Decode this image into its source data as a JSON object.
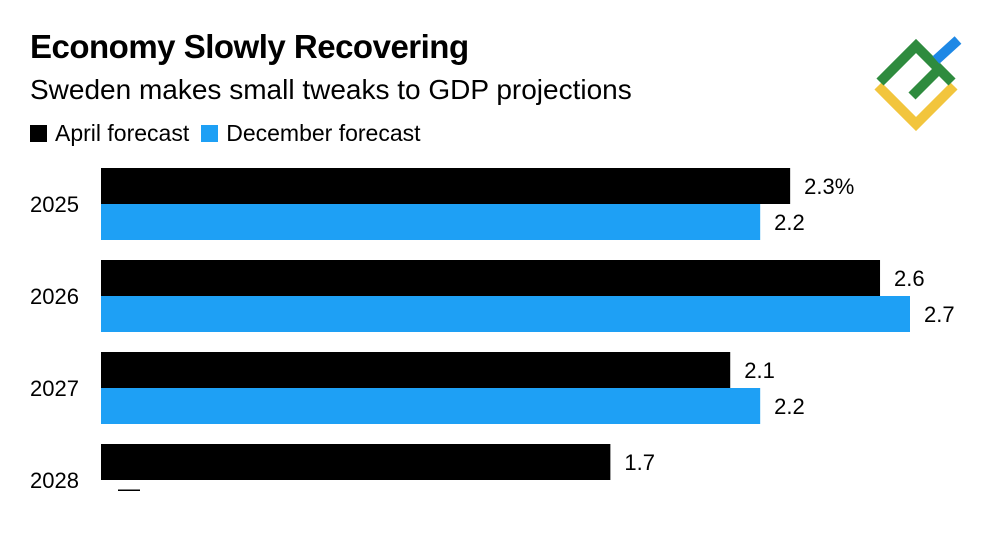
{
  "chart_data": {
    "type": "bar",
    "orientation": "horizontal",
    "title": "Economy Slowly Recovering",
    "subtitle": "Sweden makes small tweaks to GDP projections",
    "categories": [
      "2025",
      "2026",
      "2027",
      "2028"
    ],
    "series": [
      {
        "name": "April forecast",
        "color": "#000000",
        "values": [
          2.3,
          2.6,
          2.1,
          1.7
        ],
        "labels": [
          "2.3%",
          "2.6",
          "2.1",
          "1.7"
        ]
      },
      {
        "name": "December forecast",
        "color": "#1ea0f5",
        "values": [
          2.2,
          2.7,
          2.2,
          null
        ],
        "labels": [
          "2.2",
          "2.7",
          "2.2",
          "—"
        ]
      }
    ],
    "xlim": [
      0,
      2.7
    ],
    "xlabel": "",
    "ylabel": "",
    "grid": false,
    "legend": "top-left"
  },
  "logo": {
    "name": "brand-logo",
    "colors": [
      "#2e8b3e",
      "#f2c53d",
      "#1e88e5"
    ]
  }
}
